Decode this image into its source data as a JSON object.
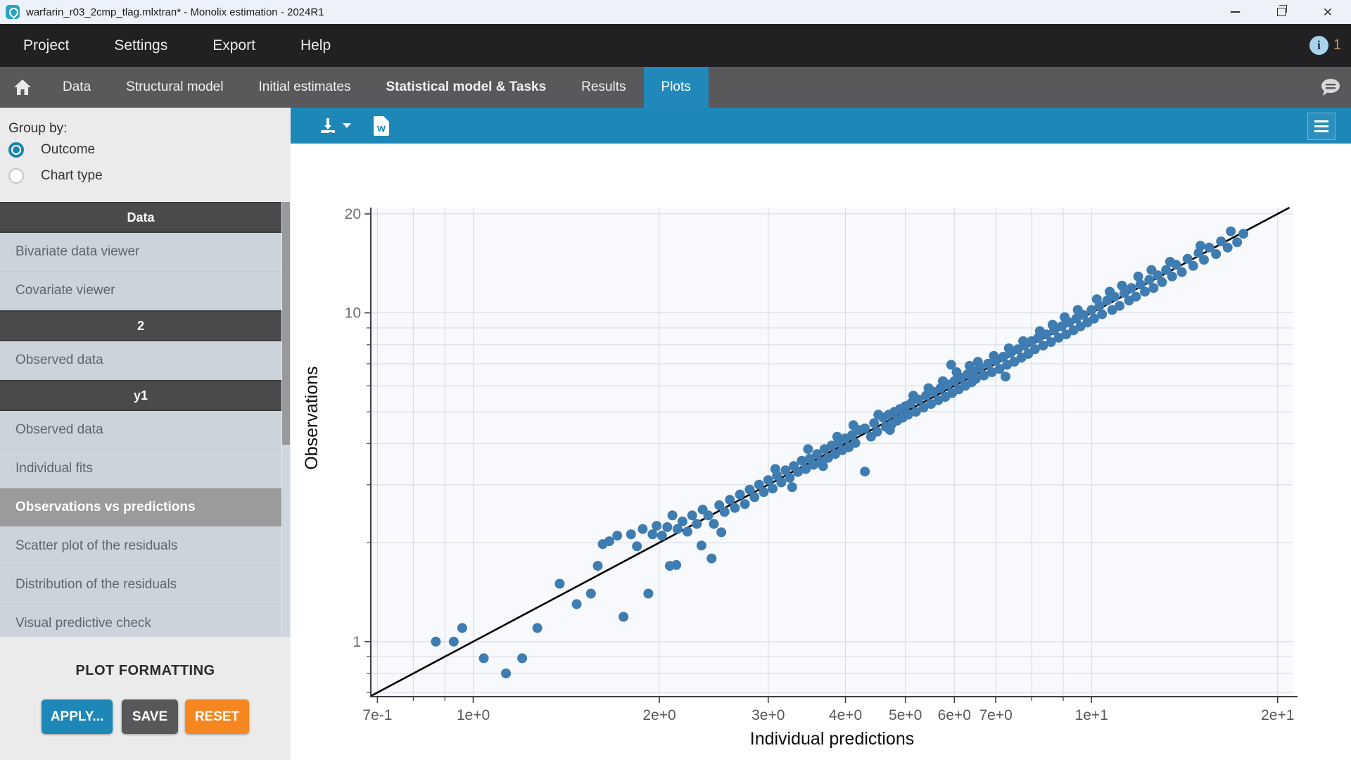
{
  "window": {
    "title": "warfarin_r03_2cmp_tlag.mlxtran* - Monolix estimation - 2024R1"
  },
  "menubar": {
    "items": [
      "Project",
      "Settings",
      "Export",
      "Help"
    ],
    "notification_count": "1"
  },
  "tabbar": {
    "tabs": [
      {
        "label": "Data"
      },
      {
        "label": "Structural model"
      },
      {
        "label": "Initial estimates"
      },
      {
        "label": "Statistical model & Tasks",
        "emphasis": true
      },
      {
        "label": "Results"
      },
      {
        "label": "Plots",
        "active": true
      }
    ]
  },
  "sidebar": {
    "group_by_label": "Group by:",
    "radios": [
      {
        "label": "Outcome",
        "selected": true
      },
      {
        "label": "Chart type",
        "selected": false
      }
    ],
    "sections": [
      {
        "header": "Data",
        "items": [
          {
            "label": "Bivariate data viewer"
          },
          {
            "label": "Covariate viewer"
          }
        ]
      },
      {
        "header": "2",
        "items": [
          {
            "label": "Observed data"
          }
        ]
      },
      {
        "header": "y1",
        "items": [
          {
            "label": "Observed data"
          },
          {
            "label": "Individual fits"
          },
          {
            "label": "Observations vs predictions",
            "selected": true
          },
          {
            "label": "Scatter plot of the residuals"
          },
          {
            "label": "Distribution of the residuals"
          },
          {
            "label": "Visual predictive check"
          }
        ]
      }
    ],
    "plot_formatting": {
      "title": "PLOT FORMATTING",
      "buttons": [
        {
          "label": "APPLY...",
          "color": "#1d87b8"
        },
        {
          "label": "SAVE",
          "color": "#58585a"
        },
        {
          "label": "RESET",
          "color": "#f6861f"
        }
      ]
    }
  },
  "colors": {
    "accent_teal": "#1d87b8",
    "tab_active": "#2089ba",
    "orange": "#f6861f",
    "point_blue": "#3e7cb1"
  },
  "chart_data": {
    "type": "scatter",
    "title": "",
    "xlabel": "Individual predictions",
    "ylabel": "Observations",
    "x_scale": "log",
    "y_scale": "log",
    "xlim": [
      0.683,
      21.2
    ],
    "ylim": [
      0.68,
      20.9
    ],
    "grid": true,
    "identity_line": true,
    "point_color": "#3e7cb1",
    "x_ticks": [
      {
        "v": 0.7,
        "label": "7e-1"
      },
      {
        "v": 1,
        "label": "1e+0"
      },
      {
        "v": 2,
        "label": "2e+0"
      },
      {
        "v": 3,
        "label": "3e+0"
      },
      {
        "v": 4,
        "label": "4e+0"
      },
      {
        "v": 5,
        "label": "5e+0"
      },
      {
        "v": 6,
        "label": "6e+0"
      },
      {
        "v": 7,
        "label": "7e+0"
      },
      {
        "v": 10,
        "label": "1e+1"
      },
      {
        "v": 20,
        "label": "2e+1"
      }
    ],
    "x_minor_ticks": [
      0.8,
      0.9,
      8,
      9
    ],
    "y_ticks": [
      {
        "v": 1,
        "label": "1"
      },
      {
        "v": 10,
        "label": "10"
      },
      {
        "v": 20,
        "label": "20"
      }
    ],
    "y_minor_ticks": [
      0.7,
      0.8,
      0.9,
      2,
      3,
      4,
      5,
      6,
      7,
      8,
      9
    ],
    "points": [
      [
        0.87,
        1.0
      ],
      [
        0.93,
        1.0
      ],
      [
        0.96,
        1.1
      ],
      [
        1.04,
        0.89
      ],
      [
        1.13,
        0.8
      ],
      [
        1.2,
        0.89
      ],
      [
        1.27,
        1.1
      ],
      [
        1.38,
        1.5
      ],
      [
        1.47,
        1.3
      ],
      [
        1.55,
        1.4
      ],
      [
        1.59,
        1.7
      ],
      [
        1.62,
        1.98
      ],
      [
        1.66,
        2.02
      ],
      [
        1.71,
        2.1
      ],
      [
        1.75,
        1.19
      ],
      [
        1.8,
        2.12
      ],
      [
        1.84,
        1.95
      ],
      [
        1.88,
        2.2
      ],
      [
        1.92,
        1.4
      ],
      [
        1.95,
        2.12
      ],
      [
        1.98,
        2.25
      ],
      [
        2.02,
        2.1
      ],
      [
        2.06,
        2.23
      ],
      [
        2.08,
        1.7
      ],
      [
        2.1,
        2.42
      ],
      [
        2.13,
        1.71
      ],
      [
        2.14,
        2.2
      ],
      [
        2.18,
        2.32
      ],
      [
        2.22,
        2.16
      ],
      [
        2.26,
        2.42
      ],
      [
        2.3,
        2.28
      ],
      [
        2.34,
        1.96
      ],
      [
        2.35,
        2.52
      ],
      [
        2.4,
        2.42
      ],
      [
        2.43,
        1.79
      ],
      [
        2.45,
        2.28
      ],
      [
        2.5,
        2.6
      ],
      [
        2.52,
        2.15
      ],
      [
        2.55,
        2.48
      ],
      [
        2.6,
        2.7
      ],
      [
        2.65,
        2.55
      ],
      [
        2.7,
        2.8
      ],
      [
        2.75,
        2.62
      ],
      [
        2.8,
        2.9
      ],
      [
        2.85,
        2.75
      ],
      [
        2.9,
        3.0
      ],
      [
        2.95,
        2.85
      ],
      [
        3.0,
        3.1
      ],
      [
        3.05,
        2.92
      ],
      [
        3.08,
        3.35
      ],
      [
        3.1,
        3.2
      ],
      [
        3.15,
        3.05
      ],
      [
        3.2,
        3.32
      ],
      [
        3.25,
        3.15
      ],
      [
        3.28,
        2.95
      ],
      [
        3.3,
        3.42
      ],
      [
        3.35,
        3.28
      ],
      [
        3.4,
        3.55
      ],
      [
        3.45,
        3.35
      ],
      [
        3.48,
        3.85
      ],
      [
        3.5,
        3.6
      ],
      [
        3.55,
        3.45
      ],
      [
        3.6,
        3.72
      ],
      [
        3.65,
        3.52
      ],
      [
        3.68,
        3.42
      ],
      [
        3.7,
        3.85
      ],
      [
        3.75,
        3.62
      ],
      [
        3.8,
        3.95
      ],
      [
        3.85,
        3.72
      ],
      [
        3.88,
        4.2
      ],
      [
        3.9,
        4.05
      ],
      [
        3.95,
        3.82
      ],
      [
        4.0,
        4.15
      ],
      [
        4.05,
        3.9
      ],
      [
        4.1,
        4.25
      ],
      [
        4.12,
        4.55
      ],
      [
        4.15,
        4.02
      ],
      [
        4.2,
        4.4
      ],
      [
        4.3,
        3.29
      ],
      [
        4.3,
        4.45
      ],
      [
        4.4,
        4.2
      ],
      [
        4.45,
        4.62
      ],
      [
        4.5,
        4.35
      ],
      [
        4.52,
        4.9
      ],
      [
        4.6,
        4.8
      ],
      [
        4.65,
        4.5
      ],
      [
        4.7,
        4.9
      ],
      [
        4.72,
        4.4
      ],
      [
        4.75,
        4.58
      ],
      [
        4.8,
        5.0
      ],
      [
        4.85,
        4.7
      ],
      [
        4.9,
        5.1
      ],
      [
        4.95,
        4.8
      ],
      [
        5.0,
        5.2
      ],
      [
        5.05,
        4.9
      ],
      [
        5.1,
        5.3
      ],
      [
        5.15,
        5.6
      ],
      [
        5.2,
        5.0
      ],
      [
        5.25,
        5.45
      ],
      [
        5.35,
        5.15
      ],
      [
        5.4,
        5.6
      ],
      [
        5.45,
        5.9
      ],
      [
        5.5,
        5.28
      ],
      [
        5.55,
        5.75
      ],
      [
        5.65,
        5.42
      ],
      [
        5.7,
        5.9
      ],
      [
        5.75,
        6.2
      ],
      [
        5.8,
        5.55
      ],
      [
        5.85,
        6.05
      ],
      [
        5.93,
        6.95
      ],
      [
        5.95,
        5.7
      ],
      [
        6.0,
        6.2
      ],
      [
        6.05,
        6.6
      ],
      [
        6.1,
        5.85
      ],
      [
        6.15,
        6.35
      ],
      [
        6.25,
        6.0
      ],
      [
        6.3,
        6.5
      ],
      [
        6.35,
        6.9
      ],
      [
        6.4,
        6.15
      ],
      [
        6.45,
        6.65
      ],
      [
        6.5,
        6.3
      ],
      [
        6.55,
        7.1
      ],
      [
        6.6,
        6.8
      ],
      [
        6.7,
        6.45
      ],
      [
        6.8,
        7.0
      ],
      [
        6.9,
        6.6
      ],
      [
        6.95,
        7.4
      ],
      [
        7.0,
        7.15
      ],
      [
        7.1,
        6.75
      ],
      [
        7.2,
        7.35
      ],
      [
        7.26,
        6.4
      ],
      [
        7.3,
        6.95
      ],
      [
        7.35,
        7.8
      ],
      [
        7.4,
        7.55
      ],
      [
        7.5,
        7.1
      ],
      [
        7.6,
        7.75
      ],
      [
        7.7,
        7.3
      ],
      [
        7.75,
        8.2
      ],
      [
        7.8,
        7.95
      ],
      [
        7.9,
        7.5
      ],
      [
        8.0,
        8.2
      ],
      [
        8.1,
        7.75
      ],
      [
        8.2,
        8.4
      ],
      [
        8.25,
        8.8
      ],
      [
        8.35,
        7.95
      ],
      [
        8.45,
        8.6
      ],
      [
        8.6,
        8.15
      ],
      [
        8.65,
        9.2
      ],
      [
        8.7,
        8.85
      ],
      [
        8.85,
        8.4
      ],
      [
        8.95,
        9.1
      ],
      [
        9.05,
        9.7
      ],
      [
        9.1,
        8.6
      ],
      [
        9.2,
        9.35
      ],
      [
        9.35,
        8.85
      ],
      [
        9.45,
        9.6
      ],
      [
        9.5,
        10.2
      ],
      [
        9.6,
        9.1
      ],
      [
        9.7,
        9.85
      ],
      [
        9.85,
        9.35
      ],
      [
        10.0,
        10.2
      ],
      [
        10.1,
        9.6
      ],
      [
        10.2,
        11.0
      ],
      [
        10.3,
        10.5
      ],
      [
        10.4,
        9.9
      ],
      [
        10.6,
        10.9
      ],
      [
        10.7,
        11.6
      ],
      [
        10.8,
        10.2
      ],
      [
        10.9,
        11.2
      ],
      [
        11.1,
        10.5
      ],
      [
        11.2,
        12.1
      ],
      [
        11.3,
        11.5
      ],
      [
        11.5,
        10.9
      ],
      [
        11.6,
        11.9
      ],
      [
        11.8,
        11.2
      ],
      [
        11.9,
        12.9
      ],
      [
        12.0,
        12.2
      ],
      [
        12.2,
        11.6
      ],
      [
        12.4,
        12.6
      ],
      [
        12.5,
        13.5
      ],
      [
        12.6,
        11.9
      ],
      [
        12.8,
        13.0
      ],
      [
        13.0,
        12.4
      ],
      [
        13.2,
        13.5
      ],
      [
        13.4,
        14.3
      ],
      [
        13.5,
        12.9
      ],
      [
        13.7,
        14.0
      ],
      [
        14.0,
        13.3
      ],
      [
        14.3,
        14.6
      ],
      [
        14.6,
        13.9
      ],
      [
        14.9,
        15.2
      ],
      [
        15.0,
        16.0
      ],
      [
        15.2,
        14.5
      ],
      [
        15.5,
        15.8
      ],
      [
        15.9,
        15.1
      ],
      [
        16.2,
        16.5
      ],
      [
        16.6,
        15.8
      ],
      [
        16.8,
        17.7
      ],
      [
        17.2,
        16.4
      ],
      [
        17.6,
        17.4
      ]
    ]
  }
}
